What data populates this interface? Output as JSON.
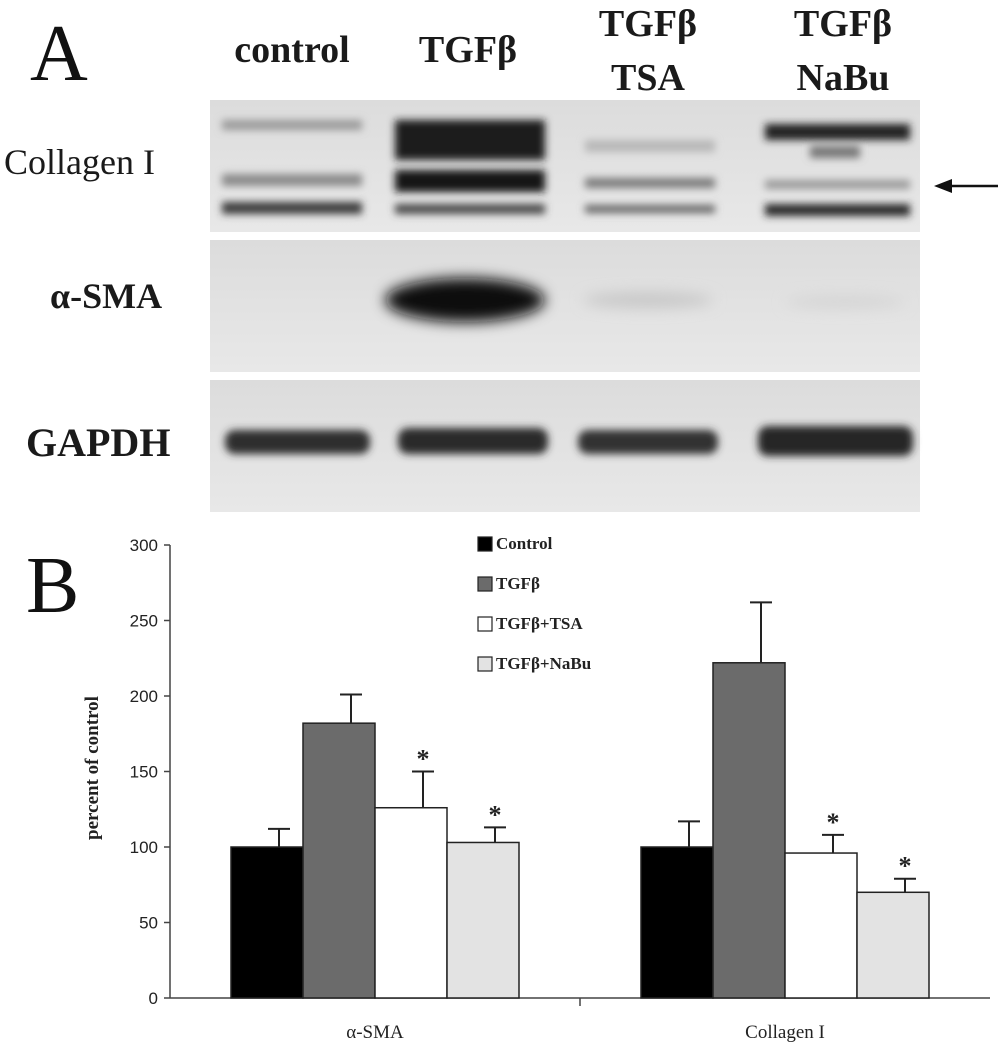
{
  "panel_a": {
    "letter": "A",
    "lanes": [
      {
        "line1": "control",
        "line2": ""
      },
      {
        "line1": "TGFβ",
        "line2": ""
      },
      {
        "line1": "TGFβ",
        "line2": "TSA"
      },
      {
        "line1": "TGFβ",
        "line2": "NaBu"
      }
    ],
    "blots": [
      {
        "label": "Collagen I"
      },
      {
        "label": "α-SMA"
      },
      {
        "label": "GAPDH"
      }
    ],
    "arrow_icon": "arrow-left-icon"
  },
  "panel_b": {
    "letter": "B"
  },
  "chart_data": {
    "type": "bar",
    "title": "",
    "xlabel": "",
    "ylabel": "percent of control",
    "ylim": [
      0,
      300
    ],
    "yticks": [
      0,
      50,
      100,
      150,
      200,
      250,
      300
    ],
    "grid": false,
    "legend_position": "top-center",
    "categories": [
      "α-SMA",
      "Collagen I"
    ],
    "series": [
      {
        "name": "Control",
        "values": [
          100,
          100
        ],
        "errors": [
          12,
          17
        ],
        "color": "#000000",
        "significant": [
          false,
          false
        ]
      },
      {
        "name": "TGFβ",
        "values": [
          182,
          222
        ],
        "errors": [
          19,
          40
        ],
        "color": "#6b6b6b",
        "significant": [
          false,
          false
        ]
      },
      {
        "name": "TGFβ+TSA",
        "values": [
          126,
          96
        ],
        "errors": [
          24,
          12
        ],
        "color": "#ffffff",
        "significant": [
          true,
          true
        ]
      },
      {
        "name": "TGFβ+NaBu",
        "values": [
          103,
          70
        ],
        "errors": [
          10,
          9
        ],
        "color": "#e3e3e3",
        "significant": [
          true,
          true
        ]
      }
    ],
    "significance_marker": "*"
  }
}
